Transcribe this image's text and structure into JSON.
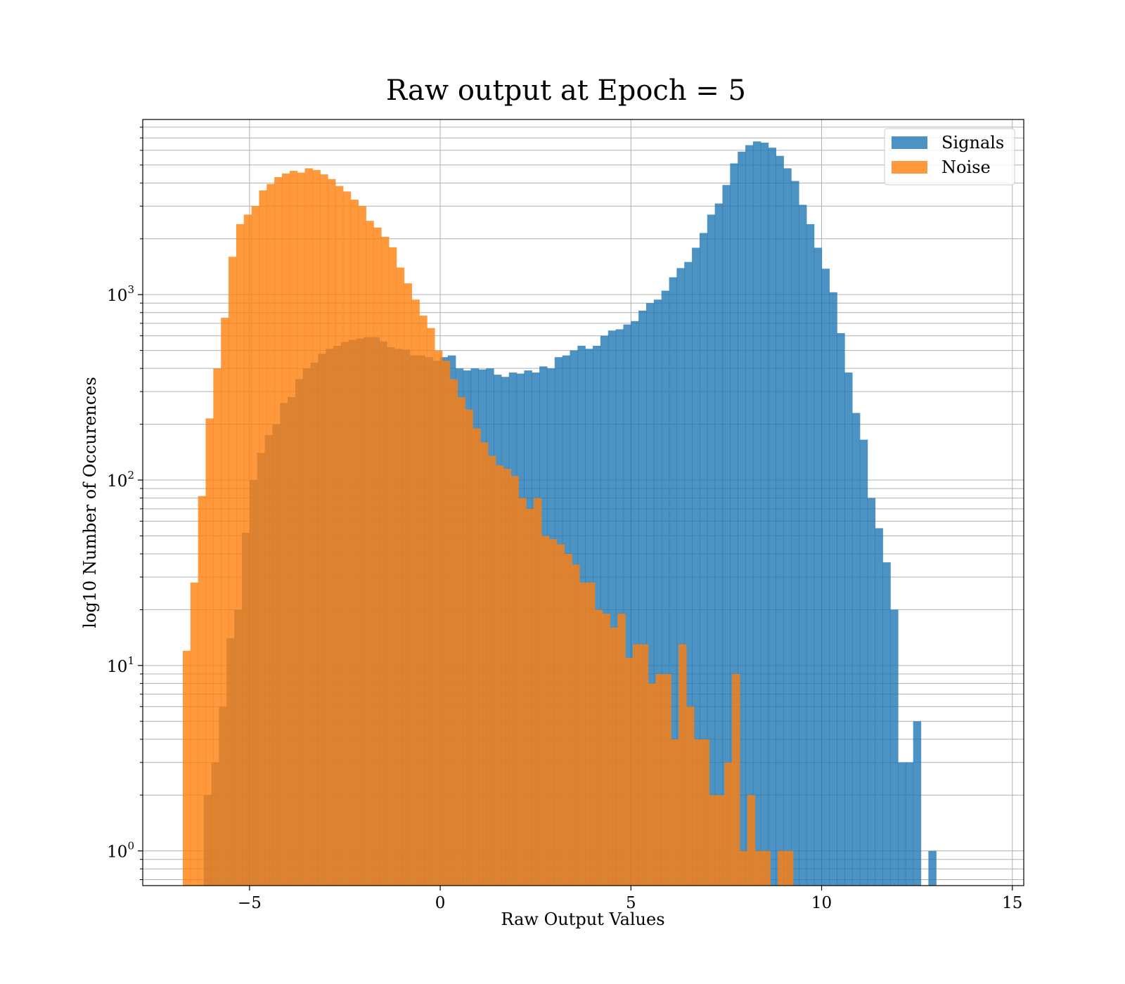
{
  "chart_data": {
    "type": "bar",
    "title": "Raw output at Epoch = 5",
    "xlabel": "Raw Output Values",
    "ylabel": "log10 Number of Occurences",
    "xlim": [
      -7.8,
      15.3
    ],
    "ylim": [
      0.65,
      8800
    ],
    "yscale": "log",
    "grid": true,
    "legend_position": "top-right",
    "x_ticks": [
      -5,
      0,
      5,
      10,
      15
    ],
    "x_tick_labels": [
      "−5",
      "0",
      "5",
      "10",
      "15"
    ],
    "y_ticks": [
      1,
      10,
      100,
      1000
    ],
    "y_tick_labels": [
      {
        "base": "10",
        "exp": "0"
      },
      {
        "base": "10",
        "exp": "1"
      },
      {
        "base": "10",
        "exp": "2"
      },
      {
        "base": "10",
        "exp": "3"
      }
    ],
    "series": [
      {
        "name": "Signals",
        "color": "#1f77b4",
        "alpha": 0.8,
        "bin_start": -6.2,
        "bin_width": 0.2,
        "values": [
          2,
          3,
          6,
          14,
          20,
          52,
          100,
          140,
          175,
          200,
          260,
          280,
          350,
          400,
          430,
          480,
          510,
          530,
          555,
          570,
          580,
          590,
          590,
          560,
          520,
          510,
          505,
          470,
          470,
          460,
          440,
          460,
          470,
          400,
          390,
          400,
          395,
          400,
          370,
          360,
          380,
          375,
          390,
          380,
          410,
          400,
          460,
          470,
          500,
          530,
          510,
          530,
          600,
          640,
          650,
          690,
          720,
          820,
          900,
          940,
          1050,
          1240,
          1390,
          1500,
          1790,
          2150,
          2700,
          3100,
          3900,
          5100,
          5900,
          6400,
          6700,
          6600,
          6200,
          5600,
          4800,
          4100,
          3050,
          2400,
          1790,
          1380,
          1030,
          620,
          380,
          230,
          165,
          80,
          55,
          36,
          20,
          3,
          3,
          5,
          0,
          1
        ]
      },
      {
        "name": "Noise",
        "color": "#ff7f0e",
        "alpha": 0.8,
        "bin_start": -6.75,
        "bin_width": 0.2,
        "values": [
          12,
          28,
          82,
          215,
          400,
          750,
          1600,
          2400,
          2700,
          3000,
          3650,
          3950,
          4300,
          4500,
          4650,
          4550,
          4800,
          4700,
          4450,
          4200,
          3850,
          3600,
          3250,
          3000,
          2500,
          2300,
          2050,
          1800,
          1400,
          1150,
          940,
          770,
          660,
          500,
          440,
          350,
          280,
          240,
          190,
          160,
          135,
          120,
          115,
          105,
          80,
          70,
          80,
          50,
          48,
          45,
          40,
          35,
          28,
          28,
          20,
          19,
          16,
          19,
          11,
          13,
          13,
          8,
          9,
          9,
          4,
          13,
          6,
          4,
          4,
          2,
          2,
          3,
          9,
          1,
          2,
          1,
          1,
          0,
          1,
          1
        ]
      }
    ]
  }
}
